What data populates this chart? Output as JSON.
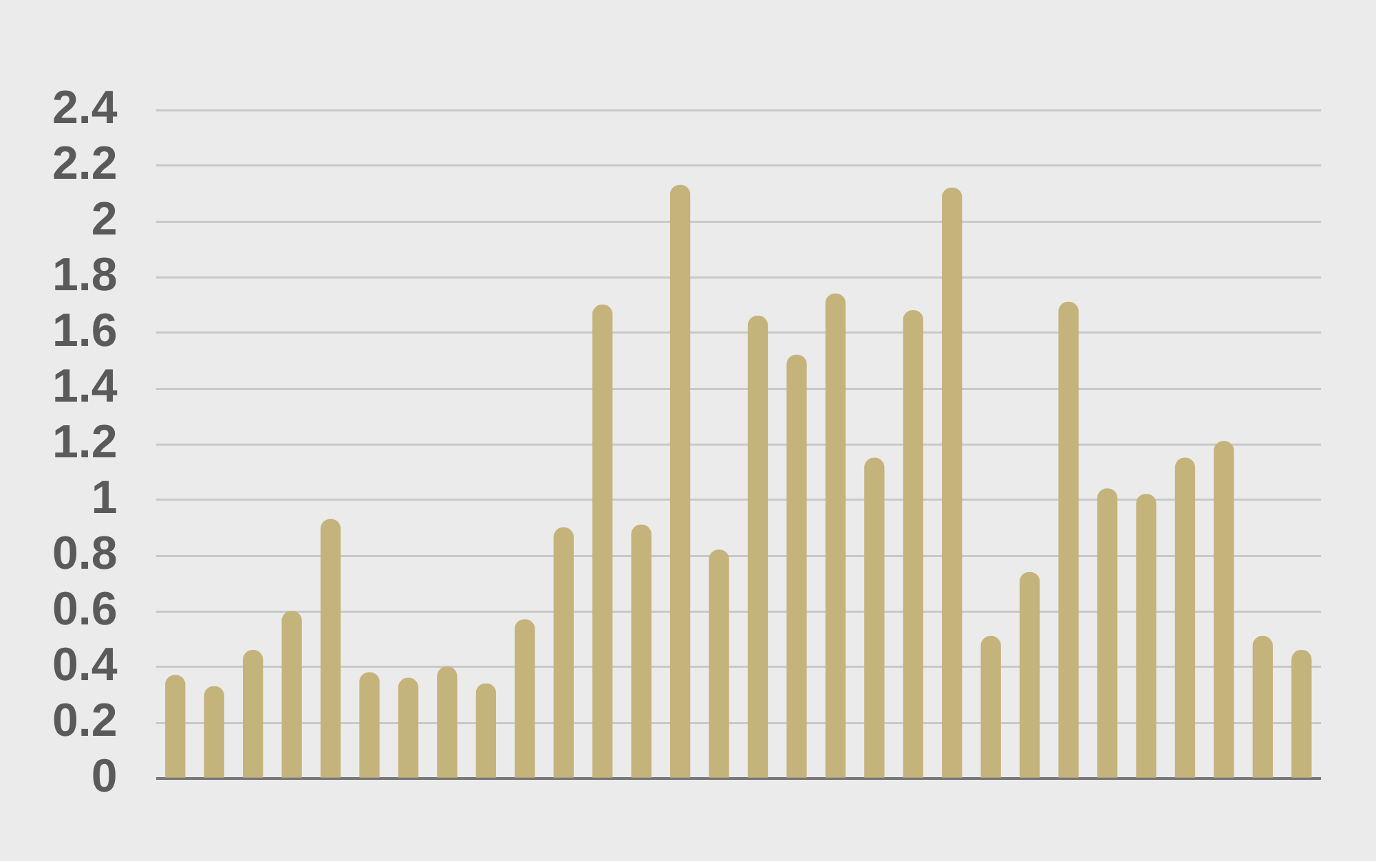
{
  "chart_data": {
    "type": "bar",
    "categories": [
      null,
      null,
      null,
      null,
      null,
      null,
      null,
      null,
      null,
      null,
      null,
      null,
      null,
      null,
      null,
      null,
      null,
      null,
      null,
      null,
      null,
      null,
      null,
      null,
      null,
      null,
      null,
      null,
      null,
      null
    ],
    "values": [
      0.37,
      0.33,
      0.46,
      0.6,
      0.93,
      0.38,
      0.36,
      0.4,
      0.34,
      0.57,
      0.9,
      1.7,
      0.91,
      2.13,
      0.82,
      1.66,
      1.52,
      1.74,
      1.15,
      1.68,
      2.12,
      0.51,
      0.74,
      1.71,
      1.04,
      1.02,
      1.15,
      1.21,
      0.51,
      0.46
    ],
    "color": "#c5b37c",
    "ylim": [
      0,
      2.4
    ],
    "yticks": [
      0,
      0.2,
      0.4,
      0.6,
      0.8,
      1,
      1.2,
      1.4,
      1.6,
      1.8,
      2,
      2.2,
      2.4
    ],
    "grid": "y",
    "legend": false
  }
}
